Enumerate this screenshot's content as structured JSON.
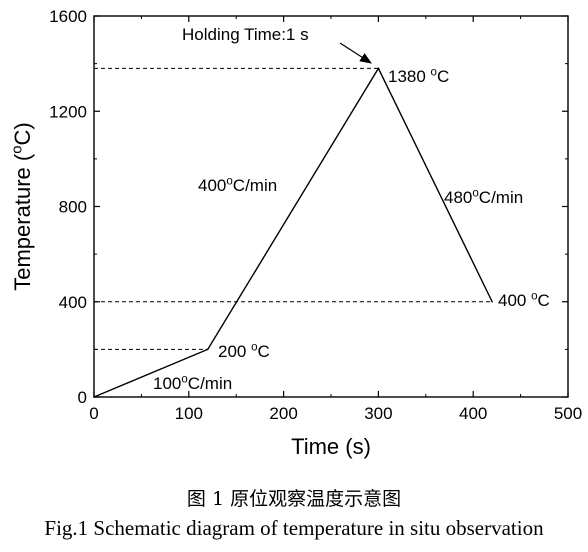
{
  "chart_data": {
    "type": "line",
    "xlabel": "Time (s)",
    "ylabel": "Temperature (oC)",
    "ylabel_parts": {
      "main": "Temperature (",
      "sup": "o",
      "end": "C)"
    },
    "xlim": [
      0,
      500
    ],
    "ylim": [
      0,
      1600
    ],
    "x_ticks": [
      "0",
      "100",
      "200",
      "300",
      "400",
      "500"
    ],
    "y_ticks": [
      "0",
      "400",
      "800",
      "1200",
      "1600"
    ],
    "x_tick_values": [
      0,
      100,
      200,
      300,
      400,
      500
    ],
    "y_tick_values": [
      0,
      400,
      800,
      1200,
      1600
    ],
    "grid": false,
    "series": [
      {
        "x": [
          0,
          120,
          300,
          420
        ],
        "y": [
          0,
          200,
          1380,
          400
        ]
      }
    ],
    "reference_lines": [
      {
        "x_start": 0,
        "x_end": 120,
        "y": 200
      },
      {
        "x_start": 0,
        "x_end": 300,
        "y": 1380
      },
      {
        "x_start": 0,
        "x_end": 420,
        "y": 400
      }
    ],
    "annotations": {
      "holding": {
        "text": "Holding Time:1 s"
      },
      "peak": {
        "main": "1380 ",
        "sup": "o",
        "end": "C"
      },
      "rate_heat_fast": {
        "main": "400",
        "sup": "o",
        "end": "C/min"
      },
      "rate_cool": {
        "main": "480",
        "sup": "o",
        "end": "C/min"
      },
      "end_temp": {
        "main": "400 ",
        "sup": "o",
        "end": "C"
      },
      "start_temp": {
        "main": "200 ",
        "sup": "o",
        "end": "C"
      },
      "rate_heat_slow": {
        "main": "100",
        "sup": "o",
        "end": "C/min"
      }
    }
  },
  "caption": {
    "chinese": "图 1  原位观察温度示意图",
    "english": "Fig.1 Schematic diagram of temperature in situ observation"
  },
  "colors": {
    "line": "#000000",
    "background": "#ffffff"
  }
}
